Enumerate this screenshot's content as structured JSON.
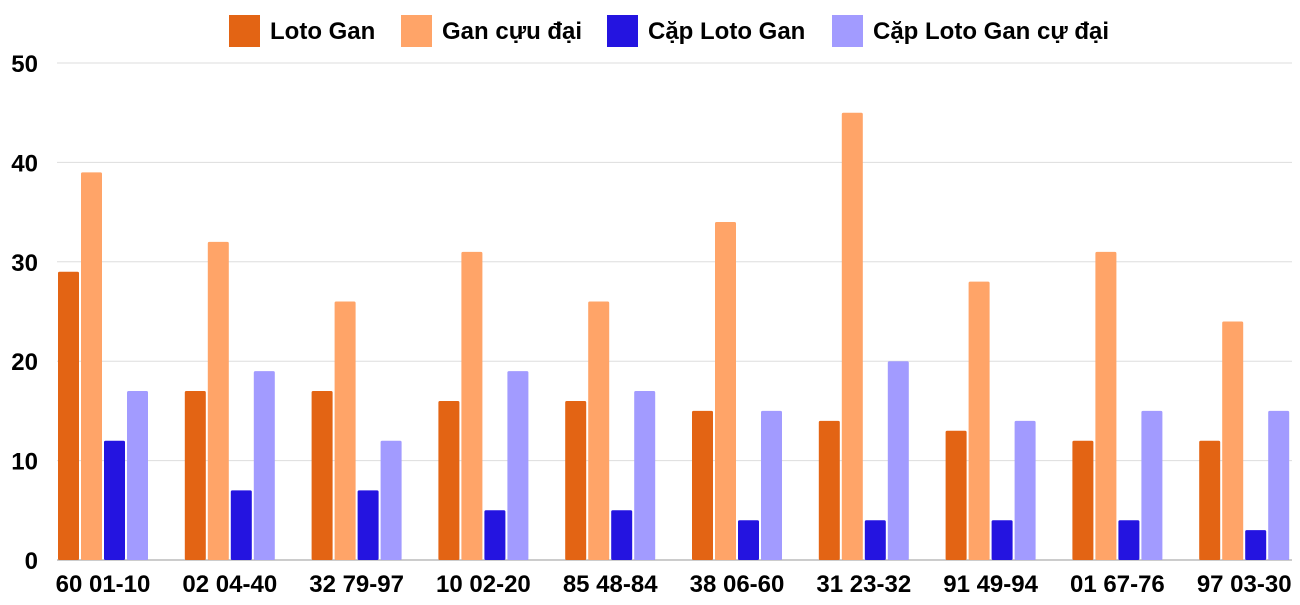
{
  "chart_data": {
    "type": "bar",
    "title": "",
    "xlabel": "",
    "ylabel": "",
    "ylim": [
      0,
      50
    ],
    "yticks": [
      0,
      10,
      20,
      30,
      40,
      50
    ],
    "grid": true,
    "legend_position": "top-center",
    "categories": [
      "60 01-10",
      "02 04-40",
      "32 79-97",
      "10 02-20",
      "85 48-84",
      "38 06-60",
      "31 23-32",
      "91 49-94",
      "01 67-76",
      "97 03-30"
    ],
    "series": [
      {
        "name": "Loto Gan",
        "color": "#e36414",
        "values": [
          29,
          17,
          17,
          16,
          16,
          15,
          14,
          13,
          12,
          12
        ]
      },
      {
        "name": "Gan cựu đại",
        "color": "#ffa468",
        "values": [
          39,
          32,
          26,
          31,
          26,
          34,
          45,
          28,
          31,
          24
        ]
      },
      {
        "name": "Cặp Loto Gan",
        "color": "#2414e0",
        "values": [
          12,
          7,
          7,
          5,
          5,
          4,
          4,
          4,
          4,
          3
        ]
      },
      {
        "name": "Cặp Loto Gan cự đại",
        "color": "#a29bff",
        "values": [
          17,
          19,
          12,
          19,
          17,
          15,
          20,
          14,
          15,
          15
        ]
      }
    ]
  }
}
